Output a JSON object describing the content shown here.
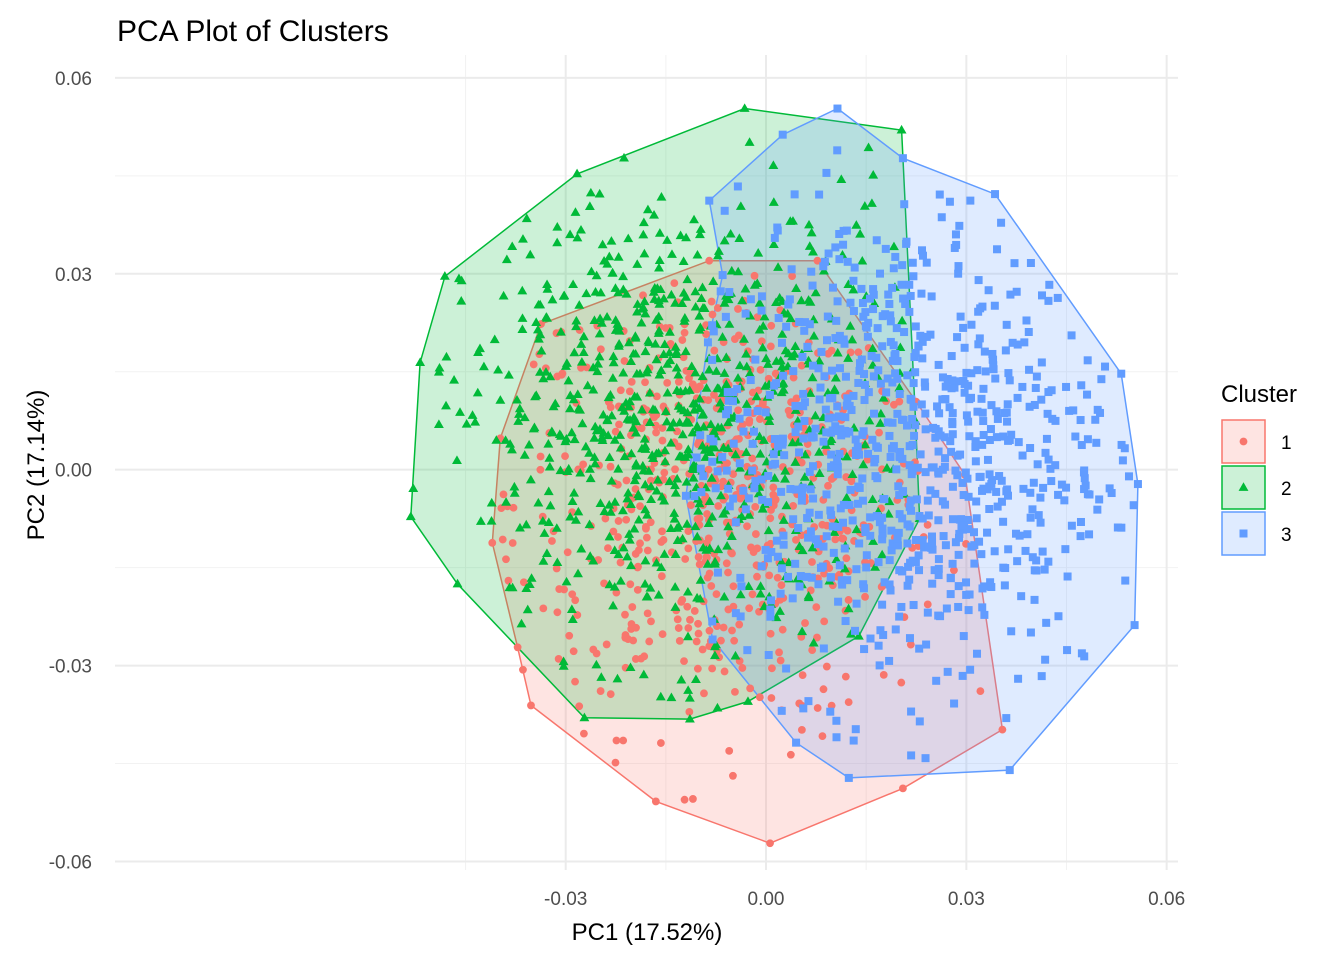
{
  "chart_data": {
    "type": "scatter",
    "title": "PCA Plot of Clusters",
    "xlabel": "PC1 (17.52%)",
    "ylabel": "PC2 (17.14%)",
    "xlim": [
      -0.0975,
      0.0617
    ],
    "ylim": [
      -0.0613,
      0.0635
    ],
    "x_ticks": [
      -0.03,
      0.0,
      0.03,
      0.06
    ],
    "x_tick_labels": [
      "-0.03",
      "0.00",
      "0.03",
      "0.06"
    ],
    "y_ticks": [
      -0.06,
      -0.03,
      0.0,
      0.03,
      0.06
    ],
    "y_tick_labels": [
      "-0.06",
      "-0.03",
      "0.00",
      "0.03",
      "0.06"
    ],
    "grid": true,
    "legend": {
      "title": "Cluster",
      "position": "right"
    },
    "series": [
      {
        "name": "1",
        "color": "#F8766D",
        "shape": "circle",
        "hull": [
          [
            -0.0352,
            -0.0361
          ],
          [
            -0.0165,
            -0.0508
          ],
          [
            0.0006,
            -0.0572
          ],
          [
            0.0205,
            -0.0488
          ],
          [
            0.0354,
            -0.0398
          ],
          [
            0.0298,
            -0.0008
          ],
          [
            0.0225,
            0.0104
          ],
          [
            0.0077,
            0.032
          ],
          [
            -0.0085,
            0.032
          ],
          [
            -0.0337,
            0.0223
          ],
          [
            -0.0398,
            0.0048
          ],
          [
            -0.041,
            -0.0112
          ],
          [
            -0.0372,
            -0.0272
          ]
        ],
        "center": [
          -0.006,
          -0.0045
        ],
        "spread": [
          0.016,
          0.0175
        ],
        "count": 620
      },
      {
        "name": "2",
        "color": "#00BA38",
        "shape": "triangle",
        "hull": [
          [
            -0.0532,
            -0.0072
          ],
          [
            -0.0462,
            -0.0175
          ],
          [
            -0.0272,
            -0.038
          ],
          [
            -0.0114,
            -0.0382
          ],
          [
            -0.0027,
            -0.0355
          ],
          [
            0.0139,
            -0.0255
          ],
          [
            0.023,
            -0.0075
          ],
          [
            0.0224,
            0.0074
          ],
          [
            0.0203,
            0.052
          ],
          [
            -0.0032,
            0.0553
          ],
          [
            -0.0283,
            0.0453
          ],
          [
            -0.0481,
            0.0296
          ],
          [
            -0.0518,
            0.0164
          ]
        ],
        "center": [
          -0.014,
          0.008
        ],
        "spread": [
          0.018,
          0.018
        ],
        "count": 780
      },
      {
        "name": "3",
        "color": "#619CFF",
        "shape": "square",
        "hull": [
          [
            -0.0087,
            0.0195
          ],
          [
            -0.0065,
            0.0298
          ],
          [
            -0.0085,
            0.0412
          ],
          [
            0.0025,
            0.0513
          ],
          [
            0.0107,
            0.0553
          ],
          [
            0.0205,
            0.0477
          ],
          [
            0.0343,
            0.0422
          ],
          [
            0.0532,
            0.0147
          ],
          [
            0.0557,
            -0.0022
          ],
          [
            0.0552,
            -0.0238
          ],
          [
            0.0365,
            -0.046
          ],
          [
            0.0124,
            -0.0472
          ],
          [
            0.0045,
            -0.0418
          ],
          [
            -0.008,
            -0.026
          ],
          [
            -0.012,
            -0.004
          ]
        ],
        "center": [
          0.019,
          0.003
        ],
        "spread": [
          0.0165,
          0.0185
        ],
        "count": 820
      }
    ]
  }
}
